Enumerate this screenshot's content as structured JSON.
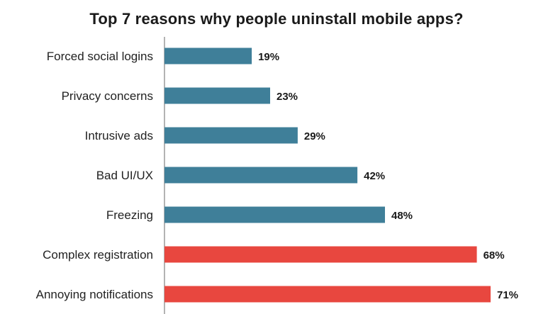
{
  "chart_data": {
    "type": "bar",
    "orientation": "horizontal",
    "title": "Top 7 reasons why people uninstall mobile apps?",
    "xlabel": "",
    "ylabel": "",
    "grid": false,
    "categories": [
      "Forced social logins",
      "Privacy concerns",
      "Intrusive ads",
      "Bad UI/UX",
      "Freezing",
      "Complex registration",
      "Annoying notifications"
    ],
    "values": [
      19,
      23,
      29,
      42,
      48,
      68,
      71
    ],
    "value_labels": [
      "19%",
      "23%",
      "29%",
      "42%",
      "48%",
      "68%",
      "71%"
    ],
    "bar_colors": [
      "#3f7f99",
      "#3f7f99",
      "#3f7f99",
      "#3f7f99",
      "#3f7f99",
      "#e8473f",
      "#e8473f"
    ],
    "xlim": [
      0,
      71
    ]
  }
}
